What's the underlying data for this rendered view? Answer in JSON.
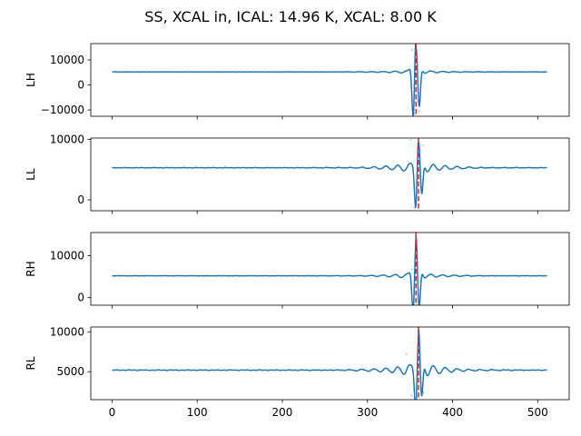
{
  "chart_data": {
    "type": "line",
    "title": "SS, XCAL in, ICAL: 14.96 K, XCAL: 8.00 K",
    "xlim": [
      -25,
      537
    ],
    "xticks": [
      0,
      100,
      200,
      300,
      400,
      500
    ],
    "xtick_labels": [
      "0",
      "100",
      "200",
      "300",
      "400",
      "500"
    ],
    "series_color": "#1f77b4",
    "marker_color": "#d62728",
    "marker_style": "dashed vertical line",
    "grid": false,
    "legend": "none",
    "panels": [
      {
        "ylabel": "LH",
        "ylim": [
          -12500,
          16500
        ],
        "yticks": [
          -10000,
          0,
          10000
        ],
        "ytick_labels": [
          "−10000",
          "0",
          "10000"
        ],
        "baseline": 5200,
        "marker_x": 357,
        "peaks": [
          {
            "x": 357,
            "value": 16000
          },
          {
            "x": 352,
            "value": 14000
          },
          {
            "x": 355,
            "value": -11500
          },
          {
            "x": 361,
            "value": -10500
          }
        ]
      },
      {
        "ylabel": "LL",
        "ylim": [
          -1800,
          10200
        ],
        "yticks": [
          0,
          10000
        ],
        "ytick_labels": [
          "0",
          "10000"
        ],
        "baseline": 5300,
        "marker_x": 360,
        "peaks": [
          {
            "x": 351,
            "value": 9900
          },
          {
            "x": 355,
            "value": -1300
          },
          {
            "x": 365,
            "value": 9000
          },
          {
            "x": 361,
            "value": 0
          }
        ]
      },
      {
        "ylabel": "RH",
        "ylim": [
          -1800,
          15500
        ],
        "yticks": [
          0,
          10000
        ],
        "ytick_labels": [
          "0",
          "10000"
        ],
        "baseline": 5200,
        "marker_x": 357,
        "peaks": [
          {
            "x": 357,
            "value": 15000
          },
          {
            "x": 352,
            "value": 6800
          },
          {
            "x": 354,
            "value": -800
          },
          {
            "x": 360,
            "value": -800
          }
        ]
      },
      {
        "ylabel": "RL",
        "ylim": [
          1500,
          10600
        ],
        "yticks": [
          5000,
          10000
        ],
        "ytick_labels": [
          "5000",
          "10000"
        ],
        "baseline": 5200,
        "marker_x": 360,
        "peaks": [
          {
            "x": 360,
            "value": 10400
          },
          {
            "x": 352,
            "value": 2000
          },
          {
            "x": 366,
            "value": 2400
          },
          {
            "x": 346,
            "value": 7200
          }
        ]
      }
    ]
  }
}
